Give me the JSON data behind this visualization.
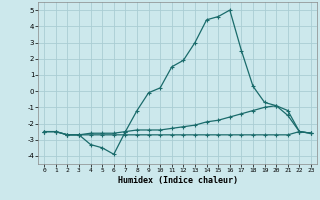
{
  "xlabel": "Humidex (Indice chaleur)",
  "bg_color": "#cce8ec",
  "grid_color": "#aacdd4",
  "line_color": "#1a6b6b",
  "xlim": [
    -0.5,
    23.5
  ],
  "ylim": [
    -4.5,
    5.5
  ],
  "xticks": [
    0,
    1,
    2,
    3,
    4,
    5,
    6,
    7,
    8,
    9,
    10,
    11,
    12,
    13,
    14,
    15,
    16,
    17,
    18,
    19,
    20,
    21,
    22,
    23
  ],
  "yticks": [
    -4,
    -3,
    -2,
    -1,
    0,
    1,
    2,
    3,
    4,
    5
  ],
  "curve1_x": [
    0,
    1,
    2,
    3,
    4,
    5,
    6,
    7,
    8,
    9,
    10,
    11,
    12,
    13,
    14,
    15,
    16,
    17,
    18,
    19,
    20,
    21,
    22,
    23
  ],
  "curve1_y": [
    -2.5,
    -2.5,
    -2.7,
    -2.7,
    -3.3,
    -3.5,
    -3.9,
    -2.5,
    -1.2,
    -0.1,
    0.2,
    1.5,
    1.9,
    3.0,
    4.4,
    4.6,
    5.0,
    2.5,
    0.3,
    -0.7,
    -0.9,
    -1.5,
    -2.5,
    -2.6
  ],
  "curve2_x": [
    0,
    1,
    2,
    3,
    4,
    5,
    6,
    7,
    8,
    9,
    10,
    11,
    12,
    13,
    14,
    15,
    16,
    17,
    18,
    19,
    20,
    21,
    22,
    23
  ],
  "curve2_y": [
    -2.5,
    -2.5,
    -2.7,
    -2.7,
    -2.6,
    -2.6,
    -2.6,
    -2.5,
    -2.4,
    -2.4,
    -2.4,
    -2.3,
    -2.2,
    -2.1,
    -1.9,
    -1.8,
    -1.6,
    -1.4,
    -1.2,
    -1.0,
    -0.9,
    -1.2,
    -2.5,
    -2.6
  ],
  "curve3_x": [
    0,
    1,
    2,
    3,
    4,
    5,
    6,
    7,
    8,
    9,
    10,
    11,
    12,
    13,
    14,
    15,
    16,
    17,
    18,
    19,
    20,
    21,
    22,
    23
  ],
  "curve3_y": [
    -2.5,
    -2.5,
    -2.7,
    -2.7,
    -2.7,
    -2.7,
    -2.7,
    -2.7,
    -2.7,
    -2.7,
    -2.7,
    -2.7,
    -2.7,
    -2.7,
    -2.7,
    -2.7,
    -2.7,
    -2.7,
    -2.7,
    -2.7,
    -2.7,
    -2.7,
    -2.5,
    -2.6
  ]
}
